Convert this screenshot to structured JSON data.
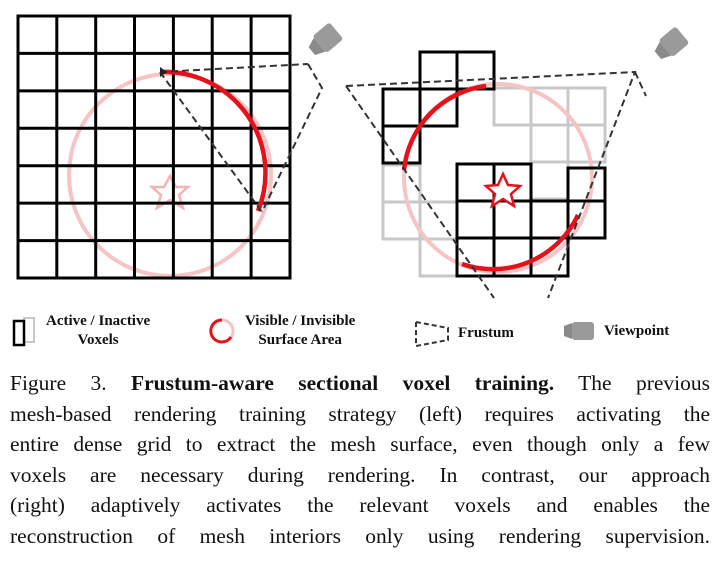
{
  "legend": {
    "voxels_line1": "Active / Inactive",
    "voxels_line2": "Voxels",
    "surface_line1": "Visible / Invisible",
    "surface_line2": "Surface Area",
    "frustum": "Frustum",
    "viewpoint": "Viewpoint"
  },
  "caption": {
    "prefix": "Figure 3.",
    "title": "Frustum-aware sectional voxel training.",
    "line1_rest": "The previous",
    "line2": "mesh-based rendering training strategy (left) requires activating the",
    "line3": "entire dense grid to extract the mesh surface, even though only a few",
    "line4": "voxels are necessary during rendering. In contrast, our approach",
    "line5": "(right) adaptively activates the relevant voxels and enables the",
    "line6": "reconstruction of mesh interiors only using rendering supervision."
  },
  "colors": {
    "active_voxel": "#000000",
    "inactive_voxel": "#c8c8c8",
    "visible_surface": "#e3121b",
    "invisible_surface": "#f6c4c4",
    "frustum": "#333333",
    "camera": "#9a9a9a"
  }
}
